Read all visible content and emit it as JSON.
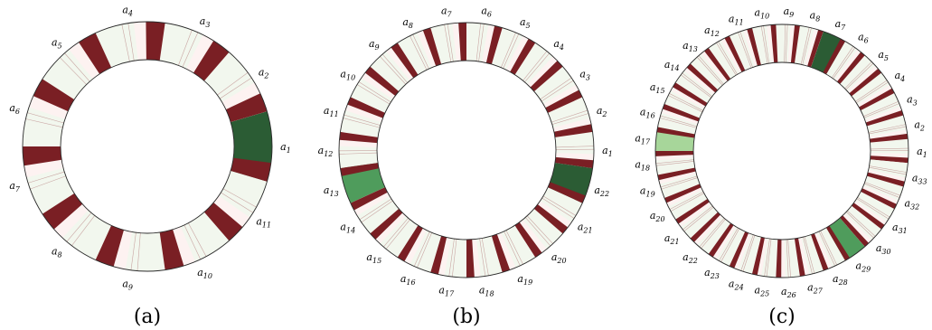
{
  "colors": {
    "divider": "#7a1f24",
    "pale_cell": "#fdf2f1",
    "light_cell": "#f2f7ee",
    "dark_green": "#2b5c34",
    "mid_green": "#4f9c5c",
    "light_green": "#a7d69a",
    "outline": "#2a2a2a"
  },
  "panels": [
    {
      "caption": "(a)",
      "n": 11,
      "labels": [
        "1",
        "2",
        "3",
        "4",
        "5",
        "6",
        "7",
        "8",
        "9",
        "10",
        "11"
      ],
      "highlights": [
        {
          "segment": 1,
          "color": "dark_green"
        }
      ]
    },
    {
      "caption": "(b)",
      "n": 22,
      "labels": [
        "1",
        "2",
        "3",
        "4",
        "5",
        "6",
        "7",
        "8",
        "9",
        "10",
        "11",
        "12",
        "13",
        "14",
        "15",
        "16",
        "17",
        "18",
        "19",
        "20",
        "21",
        "22"
      ],
      "highlights": [
        {
          "segment": 22,
          "color": "dark_green"
        },
        {
          "segment": 13,
          "color": "mid_green"
        }
      ]
    },
    {
      "caption": "(c)",
      "n": 33,
      "labels": [
        "1",
        "2",
        "3",
        "4",
        "5",
        "6",
        "7",
        "8",
        "9",
        "10",
        "11",
        "12",
        "13",
        "14",
        "15",
        "16",
        "17",
        "18",
        "19",
        "20",
        "21",
        "22",
        "23",
        "24",
        "25",
        "26",
        "27",
        "28",
        "29",
        "30",
        "31",
        "32",
        "33"
      ],
      "highlights": [
        {
          "segment": 7,
          "color": "dark_green"
        },
        {
          "segment": 29,
          "color": "mid_green"
        },
        {
          "segment": 17,
          "color": "light_green"
        }
      ]
    }
  ]
}
